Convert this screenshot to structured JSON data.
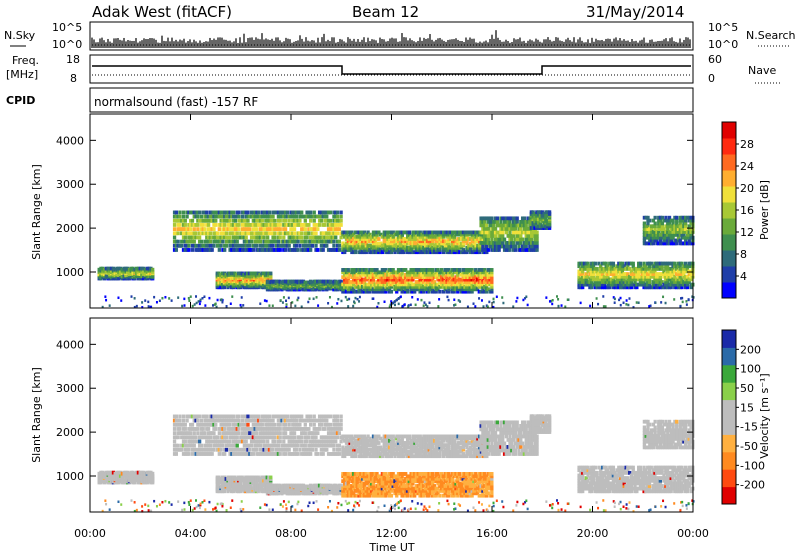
{
  "header": {
    "station": "Adak West (fitACF)",
    "beam": "Beam 12",
    "date": "31/May/2014"
  },
  "nsky_panel": {
    "left_label": "N.Sky",
    "right_label": "N.Search",
    "left_ticks": [
      "10^5",
      "10^0"
    ],
    "right_ticks": [
      "10^5",
      "10^0"
    ]
  },
  "freq_panel": {
    "left_label_1": "Freq.",
    "left_label_2": "[MHz]",
    "right_label": "Nave",
    "left_ticks": [
      "18",
      "8"
    ],
    "right_ticks": [
      "60",
      "0"
    ]
  },
  "cpid_panel": {
    "left_label": "CPID",
    "text": "normalsound (fast) -157 RF"
  },
  "colors": {
    "power": [
      "#0000ff",
      "#1f3ea8",
      "#2e6b7a",
      "#3f8f4f",
      "#6aaa3a",
      "#a8c835",
      "#f0e03a",
      "#ffae30",
      "#ff6a20",
      "#ff2a10",
      "#e00000"
    ],
    "velocity": [
      "#e00000",
      "#ff4a10",
      "#ff8a20",
      "#ffb040",
      "#bdbdbd",
      "#bdbdbd",
      "#8ad04a",
      "#3aa83a",
      "#2a6aa8",
      "#1a2aa8"
    ]
  },
  "chart_data": [
    {
      "type": "heatmap",
      "title": "Power",
      "ylabel": "Slant Range [km]",
      "xlabel": "Time UT",
      "x_ticks": [
        "00:00",
        "04:00",
        "08:00",
        "12:00",
        "16:00",
        "20:00",
        "00:00"
      ],
      "y_ticks": [
        "1000",
        "2000",
        "3000",
        "4000"
      ],
      "ylim": [
        180,
        4600
      ],
      "xlim": [
        0,
        24
      ],
      "colorbar": {
        "label": "Power [dB]",
        "ticks": [
          "4",
          "8",
          "12",
          "16",
          "20",
          "24",
          "28"
        ],
        "range": [
          0,
          30
        ]
      }
    },
    {
      "type": "heatmap",
      "title": "Velocity",
      "ylabel": "Slant Range [km]",
      "xlabel": "Time UT",
      "x_ticks": [
        "00:00",
        "04:00",
        "08:00",
        "12:00",
        "16:00",
        "20:00",
        "00:00"
      ],
      "y_ticks": [
        "1000",
        "2000",
        "3000",
        "4000"
      ],
      "ylim": [
        180,
        4600
      ],
      "xlim": [
        0,
        24
      ],
      "colorbar": {
        "label": "Velocity [m s⁻¹]",
        "ticks": [
          "-200",
          "-100",
          "-50",
          "-15",
          "15",
          "50",
          "100",
          "200"
        ]
      }
    }
  ]
}
